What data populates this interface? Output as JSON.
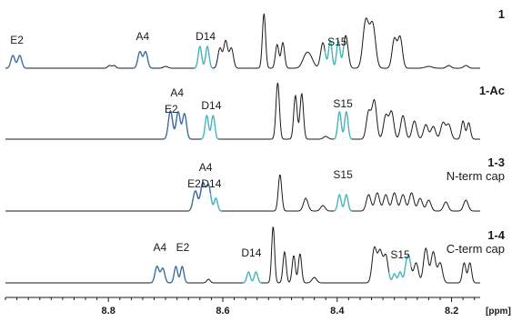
{
  "chart_data": {
    "type": "line",
    "x_unit": "[ppm]",
    "x_range_ppm": [
      8.98,
      8.15
    ],
    "x_ticks": [
      8.8,
      8.6,
      8.4,
      8.2
    ],
    "x_reversed": true,
    "grid": false,
    "colors": {
      "spectrum": "#1a1a1a",
      "E2": "#3a6ea5",
      "A4": "#3a6ea5",
      "D14": "#45b8c4",
      "S15": "#45b8c4"
    },
    "spectra": [
      {
        "name": "1",
        "subtitle": "",
        "peaks": [
          {
            "label": "E2",
            "ppm": 8.96
          },
          {
            "label": "A4",
            "ppm": 8.74
          },
          {
            "label": "D14",
            "ppm": 8.63
          },
          {
            "label": "S15",
            "ppm": 8.4
          }
        ]
      },
      {
        "name": "1-Ac",
        "subtitle": "",
        "peaks": [
          {
            "label": "E2",
            "ppm": 8.69
          },
          {
            "label": "A4",
            "ppm": 8.68
          },
          {
            "label": "D14",
            "ppm": 8.62
          },
          {
            "label": "S15",
            "ppm": 8.39
          }
        ]
      },
      {
        "name": "1-3",
        "subtitle": "N-term cap",
        "peaks": [
          {
            "label": "A4",
            "ppm": 8.63
          },
          {
            "label": "E2",
            "ppm": 8.65
          },
          {
            "label": "D14",
            "ppm": 8.62
          },
          {
            "label": "S15",
            "ppm": 8.39
          }
        ]
      },
      {
        "name": "1-4",
        "subtitle": "C-term cap",
        "peaks": [
          {
            "label": "A4",
            "ppm": 8.71
          },
          {
            "label": "E2",
            "ppm": 8.67
          },
          {
            "label": "D14",
            "ppm": 8.55
          },
          {
            "label": "S15",
            "ppm": 8.29
          }
        ]
      }
    ]
  }
}
